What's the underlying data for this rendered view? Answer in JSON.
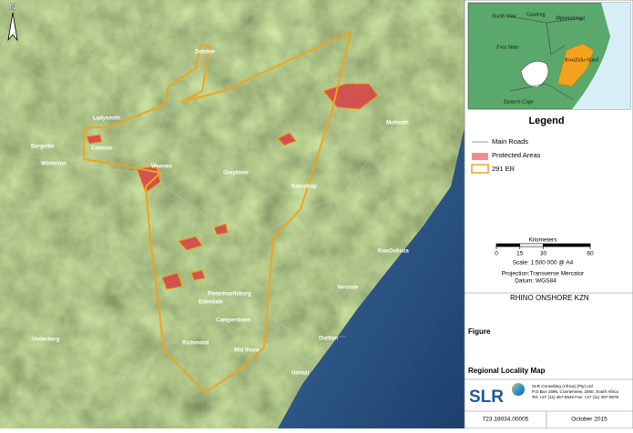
{
  "map": {
    "north": "N",
    "places": [
      "Dundee",
      "Ladysmith",
      "Bergville",
      "Winterton",
      "Colenso",
      "Weenen",
      "Melmoth",
      "Kranskop",
      "Greytown",
      "Pietermaritzburg",
      "Edendale",
      "Camperdown",
      "Durban",
      "Richmond",
      "Underberg",
      "Mid Illovo",
      "Umlazi",
      "KwaDukuza",
      "Verulam"
    ]
  },
  "inset": {
    "labels": [
      "North West",
      "Gauteng",
      "Mpumalanga",
      "Free State",
      "KwaZulu-Natal",
      "Eastern Cape"
    ]
  },
  "legend": {
    "title": "Legend",
    "items": [
      "Main Roads",
      "Protected Areas",
      "291 ER"
    ]
  },
  "scale": {
    "unit": "Kilometers",
    "ticks": [
      0,
      15,
      30,
      60
    ],
    "ratio": "Scale: 1:500 000 @ A4",
    "projection": "Projection:Transverse Mercator",
    "datum": "Datum:    WGS84"
  },
  "project": "RHINO ONSHORE KZN",
  "figure_label": "Figure",
  "figure_title": "Regional Locality Map",
  "company": {
    "logo": "SLR",
    "name": "SLR Consulting (Africa) (Pty) Ltd",
    "address": "P.O.Box 1596, Cramerview, 2060, South Africa",
    "contact": "Tel: +27 (11) 467-0945   Fax: +27 (11) 467-0978"
  },
  "footer": {
    "ref": "723.18034.00005",
    "date": "October 2015"
  }
}
